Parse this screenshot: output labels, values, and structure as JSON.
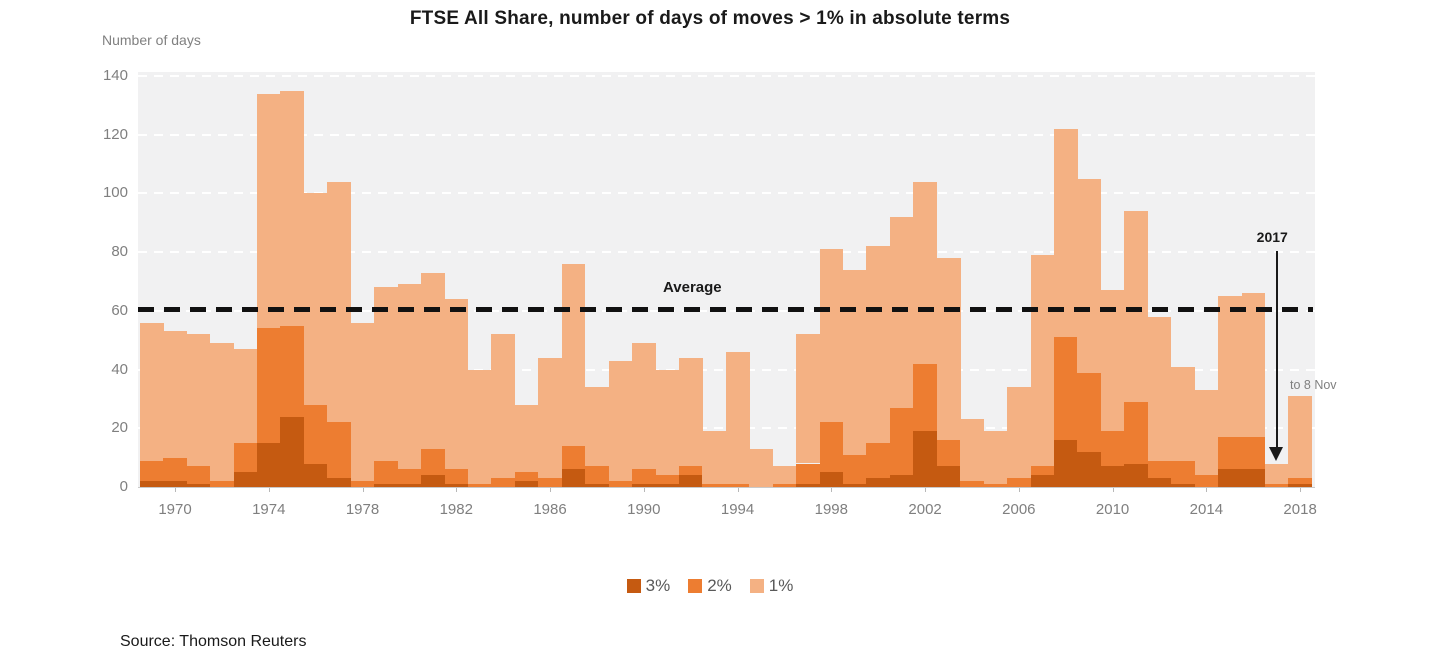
{
  "title": "FTSE All Share, number of days of moves > 1% in absolute terms",
  "y_axis": {
    "label": "Number of days",
    "ticks": [
      0,
      20,
      40,
      60,
      80,
      100,
      120,
      140
    ]
  },
  "x_axis": {
    "ticks": [
      1970,
      1974,
      1978,
      1982,
      1986,
      1990,
      1994,
      1998,
      2002,
      2006,
      2010,
      2014,
      2018
    ]
  },
  "average": {
    "label": "Average",
    "value": 60.5
  },
  "annotations": {
    "year_label": "2017",
    "partial_year_note": "to 8 Nov"
  },
  "legend": [
    {
      "label": "3%",
      "color": "#c55a11"
    },
    {
      "label": "2%",
      "color": "#ed7d31"
    },
    {
      "label": "1%",
      "color": "#f4b183"
    }
  ],
  "source": "Source: Thomson Reuters",
  "colors": {
    "pct3": "#c55a11",
    "pct2": "#ed7d31",
    "pct1": "#f4b183",
    "plot_bg": "#f1f1f2",
    "average_line": "#111111"
  },
  "chart_data": {
    "type": "bar",
    "stacked": true,
    "title": "FTSE All Share, number of days of moves > 1% in absolute terms",
    "ylabel": "Number of days",
    "ylim": [
      0,
      140
    ],
    "grid": true,
    "legend_position": "bottom",
    "average_line": 60.5,
    "x": [
      1969,
      1970,
      1971,
      1972,
      1973,
      1974,
      1975,
      1976,
      1977,
      1978,
      1979,
      1980,
      1981,
      1982,
      1983,
      1984,
      1985,
      1986,
      1987,
      1988,
      1989,
      1990,
      1991,
      1992,
      1993,
      1994,
      1995,
      1996,
      1997,
      1998,
      1999,
      2000,
      2001,
      2002,
      2003,
      2004,
      2005,
      2006,
      2007,
      2008,
      2009,
      2010,
      2011,
      2012,
      2013,
      2014,
      2015,
      2016,
      2017,
      2018
    ],
    "series": [
      {
        "name": "3%",
        "color": "#c55a11",
        "values": [
          2,
          2,
          1,
          0,
          5,
          15,
          24,
          8,
          3,
          0,
          1,
          1,
          4,
          1,
          0,
          0,
          2,
          0,
          6,
          1,
          0,
          1,
          1,
          4,
          0,
          0,
          0,
          0,
          1,
          5,
          1,
          3,
          4,
          19,
          7,
          0,
          0,
          0,
          4,
          16,
          12,
          7,
          8,
          3,
          1,
          0,
          6,
          6,
          0,
          1
        ]
      },
      {
        "name": "2%",
        "color": "#ed7d31",
        "values": [
          7,
          8,
          6,
          2,
          10,
          39,
          31,
          20,
          19,
          2,
          8,
          5,
          9,
          5,
          1,
          3,
          3,
          3,
          8,
          6,
          2,
          5,
          3,
          3,
          1,
          1,
          0,
          1,
          7,
          17,
          10,
          12,
          23,
          23,
          9,
          2,
          1,
          3,
          3,
          35,
          27,
          12,
          21,
          6,
          8,
          4,
          11,
          11,
          1,
          2
        ]
      },
      {
        "name": "1%",
        "color": "#f4b183",
        "values": [
          47,
          43,
          45,
          47,
          32,
          80,
          80,
          72,
          82,
          54,
          59,
          63,
          60,
          58,
          39,
          49,
          23,
          41,
          62,
          27,
          41,
          43,
          36,
          37,
          18,
          45,
          13,
          6,
          44,
          59,
          63,
          67,
          65,
          62,
          62,
          21,
          18,
          31,
          72,
          71,
          66,
          48,
          65,
          49,
          32,
          29,
          48,
          49,
          7,
          28
        ]
      }
    ]
  }
}
